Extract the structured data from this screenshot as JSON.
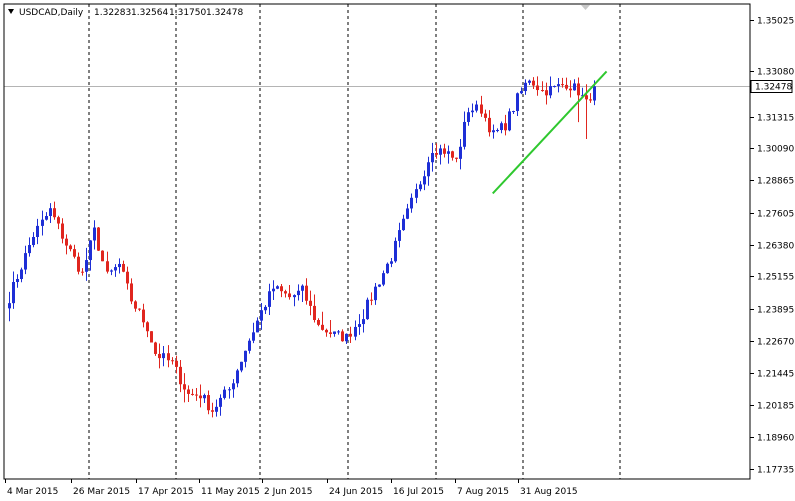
{
  "header": {
    "symbol_label": "USDCAD,Daily",
    "open": "1.32283",
    "high": "1.32564",
    "low": "1.31750",
    "close": "1.32478",
    "dropdown_icon": "triangle-down-icon"
  },
  "current_price_label": "1.32478",
  "colors": {
    "bull": "#1e2fd6",
    "bear": "#e0261f",
    "trendline": "#2fc82f",
    "grid": "#000000",
    "price_line": "#b4b4b4",
    "background": "#ffffff",
    "frame": "#000000"
  },
  "chart_data": {
    "type": "candlestick",
    "title": "",
    "symbol": "USDCAD",
    "timeframe": "Daily",
    "ylim": [
      1.1735,
      1.3565
    ],
    "y_ticks": [
      "1.35025",
      "1.33080",
      "1.31315",
      "1.30090",
      "1.28865",
      "1.27605",
      "1.26380",
      "1.25155",
      "1.23895",
      "1.22670",
      "1.21445",
      "1.20185",
      "1.18960",
      "1.17735"
    ],
    "x_ticks": [
      "4 Mar 2015",
      "26 Mar 2015",
      "17 Apr 2015",
      "11 May 2015",
      "2 Jun 2015",
      "24 Jun 2015",
      "16 Jul 2015",
      "7 Aug 2015",
      "31 Aug 2015"
    ],
    "grid": "vertical dashed",
    "close_path": [
      [
        0,
        1.2435
      ],
      [
        6,
        1.2675
      ],
      [
        10,
        1.277
      ],
      [
        14,
        1.264
      ],
      [
        18,
        1.2525
      ],
      [
        21,
        1.269
      ],
      [
        24,
        1.2515
      ],
      [
        27,
        1.256
      ],
      [
        30,
        1.2425
      ],
      [
        34,
        1.232
      ],
      [
        36,
        1.222
      ],
      [
        40,
        1.218
      ],
      [
        44,
        1.206
      ],
      [
        47,
        1.206
      ],
      [
        50,
        1.2
      ],
      [
        54,
        1.208
      ],
      [
        58,
        1.2235
      ],
      [
        62,
        1.238
      ],
      [
        65,
        1.247
      ],
      [
        69,
        1.2435
      ],
      [
        72,
        1.246
      ],
      [
        76,
        1.2325
      ],
      [
        80,
        1.229
      ],
      [
        83,
        1.228
      ],
      [
        87,
        1.237
      ],
      [
        90,
        1.247
      ],
      [
        94,
        1.259
      ],
      [
        97,
        1.272
      ],
      [
        101,
        1.288
      ],
      [
        104,
        1.301
      ],
      [
        107,
        1.3
      ],
      [
        110,
        1.296
      ],
      [
        113,
        1.316
      ],
      [
        116,
        1.316
      ],
      [
        119,
        1.306
      ],
      [
        122,
        1.31
      ],
      [
        125,
        1.32
      ],
      [
        128,
        1.328
      ],
      [
        131,
        1.323
      ],
      [
        134,
        1.324
      ],
      [
        137,
        1.326
      ],
      [
        140,
        1.323
      ],
      [
        142,
        1.318
      ],
      [
        144,
        1.3248
      ]
    ],
    "trendline": [
      [
        119,
        1.2835
      ],
      [
        147,
        1.3305
      ]
    ],
    "current_price": 1.32478
  }
}
